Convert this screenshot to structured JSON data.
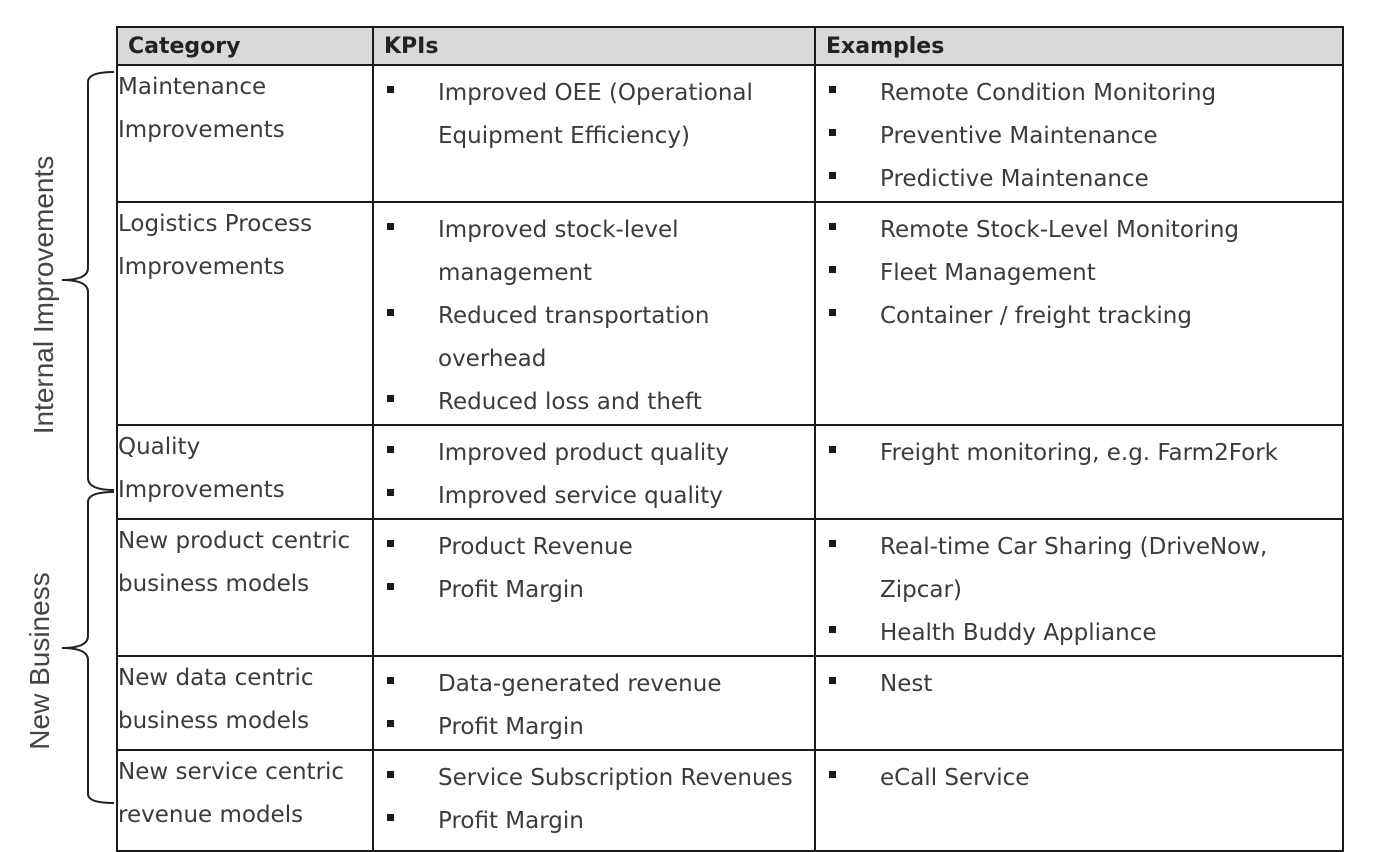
{
  "groups": {
    "internal": "Internal Improvements",
    "new_business": "New Business"
  },
  "table": {
    "headers": {
      "category": "Category",
      "kpis": "KPIs",
      "examples": "Examples"
    },
    "rows": [
      {
        "category": "Maintenance Improvements",
        "kpis": [
          "Improved OEE (Operational Equipment Efficiency)"
        ],
        "examples": [
          "Remote Condition Monitoring",
          "Preventive Maintenance",
          "Predictive Maintenance"
        ]
      },
      {
        "category": "Logistics Process Improvements",
        "kpis": [
          "Improved stock-level management",
          "Reduced transportation overhead",
          "Reduced loss and theft"
        ],
        "examples": [
          "Remote Stock-Level Monitoring",
          "Fleet Management",
          "Container / freight tracking"
        ]
      },
      {
        "category": "Quality Improvements",
        "kpis": [
          "Improved product quality",
          "Improved service quality"
        ],
        "examples": [
          "Freight monitoring, e.g. Farm2Fork"
        ]
      },
      {
        "category": "New product centric business models",
        "kpis": [
          "Product Revenue",
          "Profit Margin"
        ],
        "examples": [
          "Real-time Car Sharing (DriveNow, Zipcar)",
          "Health Buddy Appliance"
        ]
      },
      {
        "category": "New data centric business models",
        "kpis": [
          "Data-generated revenue",
          "Profit Margin"
        ],
        "examples": [
          "Nest"
        ]
      },
      {
        "category": "New service centric revenue models",
        "kpis": [
          "Service Subscription Revenues",
          "Profit Margin"
        ],
        "examples": [
          "eCall Service"
        ]
      }
    ]
  }
}
